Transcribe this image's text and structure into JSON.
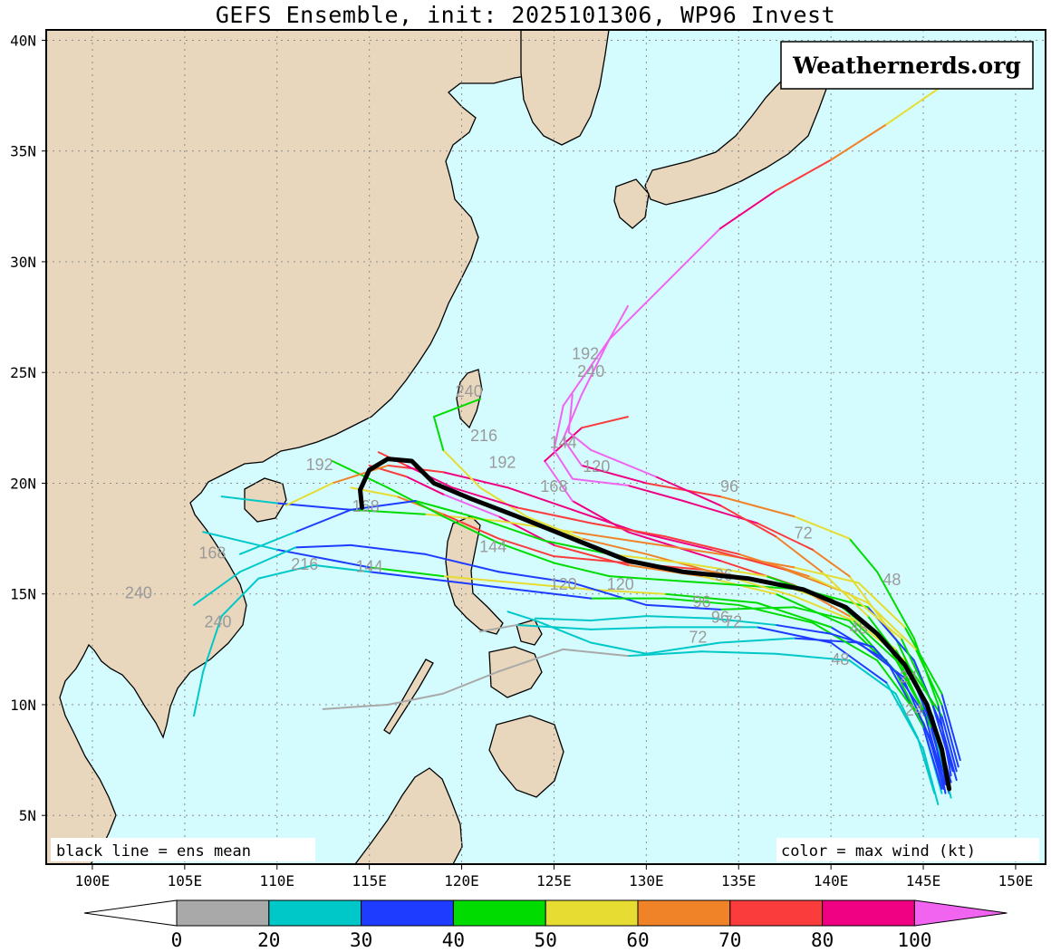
{
  "title": "GEFS Ensemble, init: 2025101306, WP96 Invest",
  "watermark": "Weathernerds.org",
  "note_left": "black line = ens mean",
  "note_right": "color = max wind (kt)",
  "lat_labels": [
    "40N",
    "35N",
    "30N",
    "25N",
    "20N",
    "15N",
    "10N",
    "5N"
  ],
  "lon_labels": [
    "100E",
    "105E",
    "110E",
    "115E",
    "120E",
    "125E",
    "130E",
    "135E",
    "140E",
    "145E",
    "150E"
  ],
  "colorbar": {
    "ticks": [
      "0",
      "20",
      "30",
      "40",
      "50",
      "60",
      "70",
      "80",
      "100"
    ],
    "colors": [
      "#a9a9a9",
      "#00c8c8",
      "#1e3cff",
      "#00dc00",
      "#e6dc32",
      "#f08228",
      "#fa3c3c",
      "#f00082",
      "#f064f0"
    ]
  },
  "colors": {
    "ocean": "#d4fcff",
    "land": "#e8d7bd",
    "grid": "#8c8c8c",
    "ensemble_mean": "#000000"
  },
  "hour_labels": [
    "240",
    "216",
    "192",
    "168",
    "144",
    "120",
    "96",
    "72",
    "48",
    "24"
  ],
  "ensemble_mean_track": [
    [
      146.4,
      6.2
    ],
    [
      146.0,
      8.0
    ],
    [
      145.2,
      10.0
    ],
    [
      144.0,
      11.8
    ],
    [
      142.5,
      13.2
    ],
    [
      140.8,
      14.4
    ],
    [
      138.5,
      15.2
    ],
    [
      135.5,
      15.7
    ],
    [
      132.0,
      16.0
    ],
    [
      129.0,
      16.5
    ],
    [
      126.0,
      17.5
    ],
    [
      123.0,
      18.5
    ],
    [
      120.5,
      19.3
    ],
    [
      118.5,
      20.0
    ],
    [
      117.3,
      21.0
    ],
    [
      116.0,
      21.1
    ],
    [
      115.0,
      20.6
    ],
    [
      114.5,
      19.7
    ],
    [
      114.6,
      18.9
    ]
  ]
}
